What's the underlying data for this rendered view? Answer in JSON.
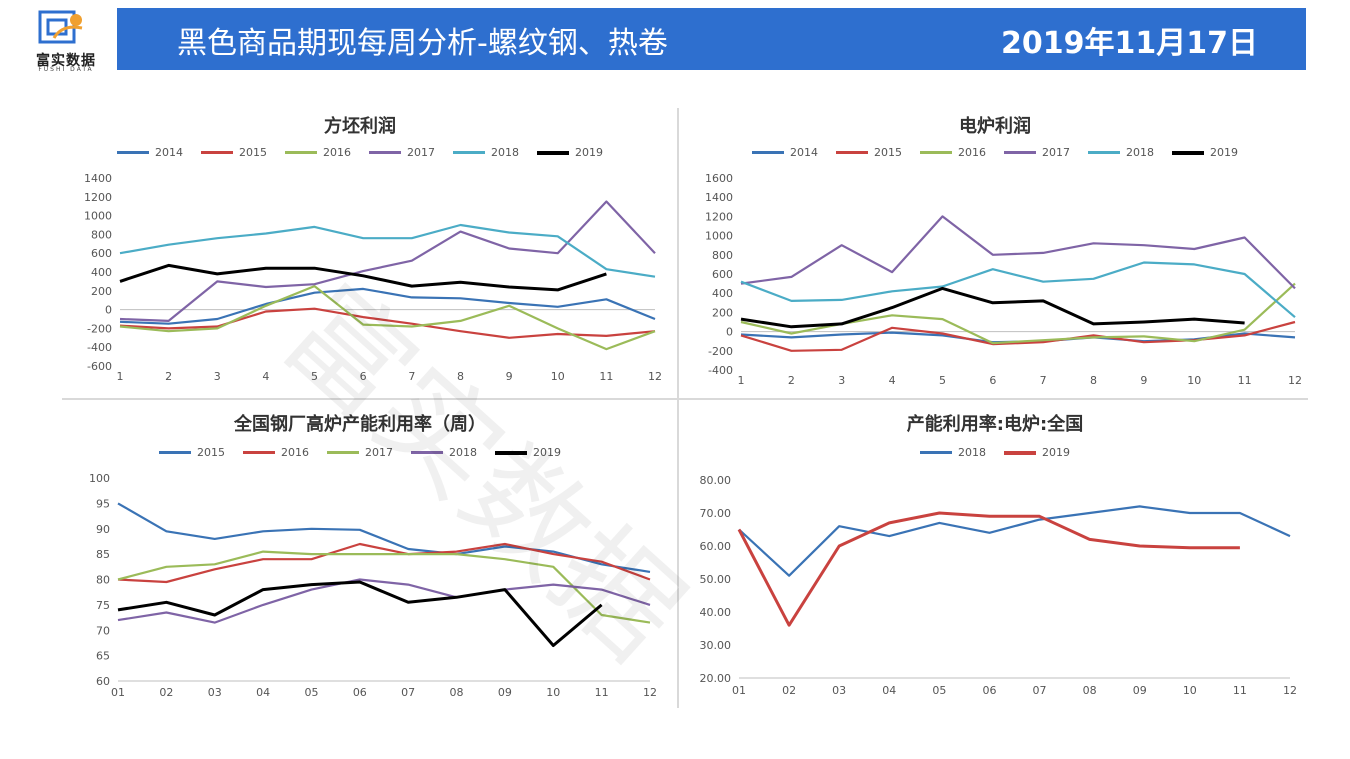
{
  "header": {
    "logo_text": "富实数据",
    "logo_sub": "FUSHI DATA",
    "title": "黑色商品期现每周分析-螺纹钢、热卷",
    "date": "2019年11月17日"
  },
  "watermark": "富实数据",
  "colors": {
    "banner": "#2e6fcf",
    "2014": "#3a73b5",
    "2015": "#c9423f",
    "2016": "#9bbb59",
    "2017": "#7f64a6",
    "2018": "#4bacc6",
    "2019": "#000000"
  },
  "chart_data": [
    {
      "id": "billet",
      "type": "line",
      "title": "方坯利润",
      "x": [
        "1",
        "2",
        "3",
        "4",
        "5",
        "6",
        "7",
        "8",
        "9",
        "10",
        "11",
        "12"
      ],
      "ylim": [
        -600,
        1400
      ],
      "yticks": [
        -600,
        -400,
        -200,
        0,
        200,
        400,
        600,
        800,
        1000,
        1200,
        1400
      ],
      "series": [
        {
          "name": "2014",
          "color": "#3a73b5",
          "values": [
            -130,
            -150,
            -100,
            60,
            180,
            220,
            130,
            120,
            70,
            30,
            110,
            -100
          ]
        },
        {
          "name": "2015",
          "color": "#c9423f",
          "values": [
            -170,
            -200,
            -180,
            -20,
            10,
            -80,
            -150,
            -230,
            -300,
            -260,
            -280,
            -230
          ]
        },
        {
          "name": "2016",
          "color": "#9bbb59",
          "values": [
            -180,
            -230,
            -200,
            40,
            250,
            -160,
            -180,
            -120,
            40,
            -200,
            -420,
            -230
          ]
        },
        {
          "name": "2017",
          "color": "#7f64a6",
          "values": [
            -100,
            -120,
            300,
            240,
            270,
            410,
            520,
            830,
            650,
            600,
            1150,
            600
          ]
        },
        {
          "name": "2018",
          "color": "#4bacc6",
          "values": [
            600,
            690,
            760,
            810,
            880,
            760,
            760,
            900,
            820,
            780,
            430,
            350
          ]
        },
        {
          "name": "2019",
          "color": "#000000",
          "values": [
            300,
            470,
            380,
            440,
            440,
            360,
            250,
            290,
            240,
            210,
            380,
            null
          ]
        }
      ]
    },
    {
      "id": "eaf",
      "type": "line",
      "title": "电炉利润",
      "x": [
        "1",
        "2",
        "3",
        "4",
        "5",
        "6",
        "7",
        "8",
        "9",
        "10",
        "11",
        "12"
      ],
      "ylim": [
        -400,
        1600
      ],
      "yticks": [
        -400,
        -200,
        0,
        200,
        400,
        600,
        800,
        1000,
        1200,
        1400,
        1600
      ],
      "series": [
        {
          "name": "2014",
          "color": "#3a73b5",
          "values": [
            -30,
            -60,
            -30,
            -10,
            -40,
            -110,
            -100,
            -60,
            -100,
            -80,
            -20,
            -60
          ]
        },
        {
          "name": "2015",
          "color": "#c9423f",
          "values": [
            -40,
            -200,
            -190,
            40,
            -20,
            -130,
            -110,
            -40,
            -110,
            -90,
            -40,
            100
          ]
        },
        {
          "name": "2016",
          "color": "#9bbb59",
          "values": [
            100,
            -20,
            80,
            170,
            130,
            -120,
            -90,
            -60,
            -50,
            -100,
            20,
            500
          ]
        },
        {
          "name": "2017",
          "color": "#7f64a6",
          "values": [
            500,
            570,
            900,
            620,
            1200,
            800,
            820,
            920,
            900,
            860,
            980,
            450
          ]
        },
        {
          "name": "2018",
          "color": "#4bacc6",
          "values": [
            520,
            320,
            330,
            420,
            470,
            650,
            520,
            550,
            720,
            700,
            600,
            150
          ]
        },
        {
          "name": "2019",
          "color": "#000000",
          "values": [
            130,
            50,
            80,
            250,
            450,
            300,
            320,
            80,
            100,
            130,
            90,
            null
          ]
        }
      ]
    },
    {
      "id": "bf",
      "type": "line",
      "title": "全国钢厂高炉产能利用率（周）",
      "x": [
        "01",
        "02",
        "03",
        "04",
        "05",
        "06",
        "07",
        "08",
        "09",
        "10",
        "11",
        "12"
      ],
      "ylim": [
        60,
        100
      ],
      "yticks": [
        60,
        65,
        70,
        75,
        80,
        85,
        90,
        95,
        100
      ],
      "series": [
        {
          "name": "2015",
          "color": "#3a73b5",
          "values": [
            95,
            89.5,
            88,
            89.5,
            90,
            89.8,
            86,
            85,
            86.5,
            85.5,
            83,
            81.5
          ]
        },
        {
          "name": "2016",
          "color": "#c9423f",
          "values": [
            80,
            79.5,
            82,
            84,
            84,
            87,
            85,
            85.5,
            87,
            85,
            83.5,
            80
          ]
        },
        {
          "name": "2017",
          "color": "#9bbb59",
          "values": [
            80,
            82.5,
            83,
            85.5,
            85,
            85,
            85,
            85,
            84,
            82.5,
            73,
            71.5
          ]
        },
        {
          "name": "2018",
          "color": "#7f64a6",
          "values": [
            72,
            73.5,
            71.5,
            75,
            78,
            80,
            79,
            76.5,
            78,
            79,
            78,
            75
          ]
        },
        {
          "name": "2019",
          "color": "#000000",
          "values": [
            74,
            75.5,
            73,
            78,
            79,
            79.5,
            75.5,
            76.5,
            78,
            67,
            75,
            null
          ]
        }
      ]
    },
    {
      "id": "eaf_util",
      "type": "line",
      "title": "产能利用率:电炉:全国",
      "x": [
        "01",
        "02",
        "03",
        "04",
        "05",
        "06",
        "07",
        "08",
        "09",
        "10",
        "11",
        "12"
      ],
      "ylim": [
        20,
        80
      ],
      "yticks": [
        "20.00",
        "30.00",
        "40.00",
        "50.00",
        "60.00",
        "70.00",
        "80.00"
      ],
      "series": [
        {
          "name": "2018",
          "color": "#3a73b5",
          "values": [
            65,
            51,
            66,
            63,
            67,
            64,
            68,
            70,
            72,
            70,
            70,
            63
          ]
        },
        {
          "name": "2019",
          "color": "#c9423f",
          "values": [
            65,
            36,
            60,
            67,
            70,
            69,
            69,
            62,
            60,
            59.5,
            59.5,
            null
          ]
        }
      ]
    }
  ]
}
